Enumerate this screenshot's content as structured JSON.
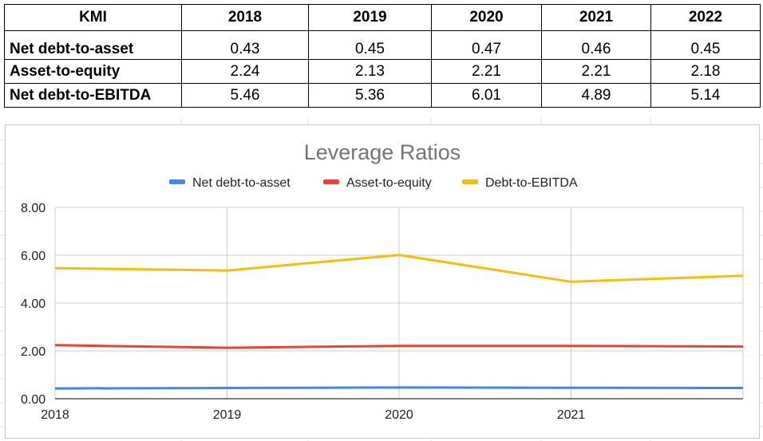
{
  "table": {
    "header": [
      "KMI",
      "2018",
      "2019",
      "2020",
      "2021",
      "2022"
    ],
    "rows": [
      {
        "label": "Net debt-to-asset",
        "values": [
          "0.43",
          "0.45",
          "0.47",
          "0.46",
          "0.45"
        ]
      },
      {
        "label": "Asset-to-equity",
        "values": [
          "2.24",
          "2.13",
          "2.21",
          "2.21",
          "2.18"
        ]
      },
      {
        "label": "Net debt-to-EBITDA",
        "values": [
          "5.46",
          "5.36",
          "6.01",
          "4.89",
          "5.14"
        ]
      }
    ]
  },
  "chart_data": {
    "type": "line",
    "title": "Leverage Ratios",
    "xlabel": "",
    "ylabel": "",
    "x": [
      2018,
      2019,
      2020,
      2021,
      2022
    ],
    "x_tick_labels": [
      "2018",
      "2019",
      "2020",
      "2021"
    ],
    "y_tick_labels": [
      "0.00",
      "2.00",
      "4.00",
      "6.00",
      "8.00"
    ],
    "ylim": [
      0,
      8
    ],
    "grid": true,
    "legend_position": "top",
    "series": [
      {
        "name": "Net debt-to-asset",
        "color": "#4285f4",
        "values": [
          0.43,
          0.45,
          0.47,
          0.46,
          0.45
        ]
      },
      {
        "name": "Asset-to-equity",
        "color": "#ea4335",
        "values": [
          2.24,
          2.13,
          2.21,
          2.21,
          2.18
        ]
      },
      {
        "name": "Debt-to-EBITDA",
        "color": "#fbbc04",
        "values": [
          5.46,
          5.36,
          6.01,
          4.89,
          5.14
        ]
      }
    ]
  }
}
